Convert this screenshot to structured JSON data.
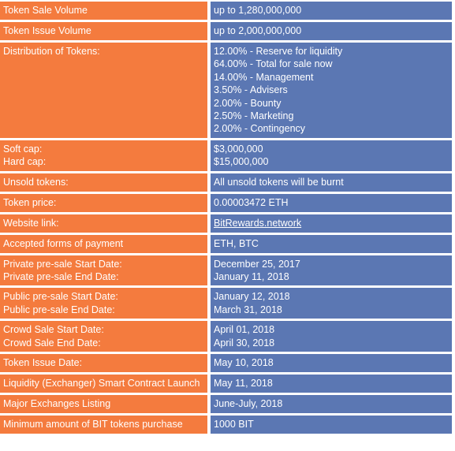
{
  "colors": {
    "label_bg": "#f47b3e",
    "value_bg": "#5b77b3",
    "text": "#ffffff"
  },
  "rows": [
    {
      "labels": [
        "Token Sale Volume"
      ],
      "values": [
        "up to 1,280,000,000"
      ]
    },
    {
      "labels": [
        "Token Issue Volume"
      ],
      "values": [
        "up to 2,000,000,000"
      ]
    },
    {
      "labels": [
        "Distribution of Tokens:"
      ],
      "values": [
        "12.00% - Reserve for liquidity",
        "64.00% - Total for sale now",
        "14.00% - Management",
        "3.50% - Advisers",
        "2.00% - Bounty",
        "2.50% - Marketing",
        "2.00% - Contingency"
      ]
    },
    {
      "labels": [
        "Soft cap:",
        "Hard cap:"
      ],
      "values": [
        "$3,000,000",
        "$15,000,000"
      ]
    },
    {
      "labels": [
        "Unsold tokens:"
      ],
      "values": [
        "All unsold tokens will be burnt"
      ]
    },
    {
      "labels": [
        "Token price:"
      ],
      "values": [
        "0.00003472 ETH"
      ]
    },
    {
      "labels": [
        "Website link:"
      ],
      "values": [
        "BitRewards.network"
      ]
    },
    {
      "labels": [
        "Accepted forms of payment"
      ],
      "values": [
        "ETH, BTC"
      ]
    },
    {
      "labels": [
        "Private pre-sale Start Date:",
        "Private pre-sale End Date:"
      ],
      "values": [
        "December 25, 2017",
        "January 11, 2018"
      ]
    },
    {
      "labels": [
        "Public pre-sale Start Date:",
        "Public pre-sale End Date:"
      ],
      "values": [
        "January 12, 2018",
        "March 31, 2018"
      ]
    },
    {
      "labels": [
        "Crowd Sale Start Date:",
        "Crowd Sale End Date:"
      ],
      "values": [
        "April 01, 2018",
        "April 30, 2018"
      ]
    },
    {
      "labels": [
        "Token Issue Date:"
      ],
      "values": [
        "May 10, 2018"
      ]
    },
    {
      "labels": [
        "Liquidity (Exchanger) Smart Contract Launch"
      ],
      "values": [
        "May 11, 2018"
      ]
    },
    {
      "labels": [
        "Major Exchanges Listing"
      ],
      "values": [
        "June-July, 2018"
      ]
    },
    {
      "labels": [
        "Minimum amount of BIT tokens purchase"
      ],
      "values": [
        "1000 BIT"
      ]
    }
  ]
}
